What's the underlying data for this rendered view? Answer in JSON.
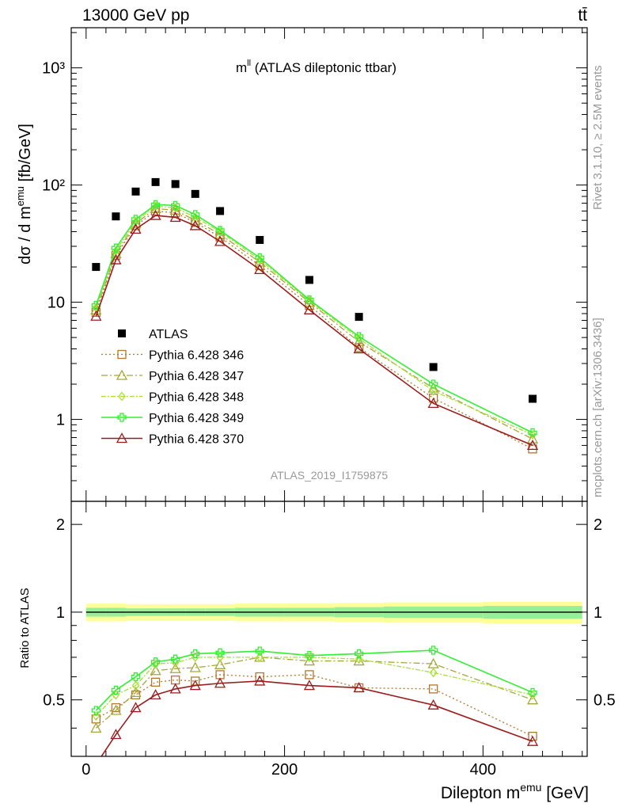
{
  "header": {
    "energy": "13000 GeV pp",
    "process": "tt̄"
  },
  "side": {
    "rivet": "Rivet 3.1.10, ≥ 2.5M events",
    "mcplots": "mcplots.cern.ch [arXiv:1306.3436]"
  },
  "main": {
    "title_base": "m",
    "title_sup": "ll",
    "title_rest": " (ATLAS dileptonic ttbar)",
    "ylabel_a": "dσ / d m",
    "ylabel_sup": "emu",
    "ylabel_b": " [fb/GeV]",
    "watermark": "ATLAS_2019_I1759875",
    "ytick_labels": [
      "10³",
      "10²",
      "10",
      "1"
    ]
  },
  "ratio": {
    "ylabel": "Ratio to ATLAS",
    "ytick_labels": [
      "2",
      "1",
      "0.5"
    ]
  },
  "xaxis": {
    "label_a": "Dilepton m",
    "label_sup": "emu",
    "label_b": " [GeV]",
    "tick_labels": [
      "0",
      "200",
      "400"
    ]
  },
  "chart_data": {
    "type": "line",
    "x_edges": [
      0,
      20,
      40,
      60,
      80,
      100,
      120,
      150,
      200,
      250,
      300,
      400,
      500
    ],
    "x": [
      10,
      30,
      50,
      70,
      90,
      110,
      135,
      175,
      225,
      275,
      350,
      450
    ],
    "main_ylim": [
      0.2,
      2200
    ],
    "main_yscale": "log",
    "ratio_ylim": [
      0.32,
      2.4
    ],
    "ratio_yscale": "log",
    "xlim": [
      -15,
      505
    ],
    "series": [
      {
        "name": "ATLAS",
        "color": "#000000",
        "marker": "square",
        "values": [
          20,
          54,
          88,
          106,
          102,
          84,
          60,
          34,
          15.5,
          7.5,
          2.8,
          1.5
        ]
      },
      {
        "name": "Pythia 6.428 346",
        "color": "#b07830",
        "marker": "open-square",
        "dash": "2,3",
        "values": [
          8.2,
          25,
          45,
          60,
          58,
          48,
          36,
          20.5,
          9.4,
          4.1,
          1.52,
          0.56
        ],
        "ratio": [
          0.43,
          0.47,
          0.52,
          0.575,
          0.585,
          0.58,
          0.61,
          0.6,
          0.61,
          0.55,
          0.545,
          0.375
        ]
      },
      {
        "name": "Pythia 6.428 347",
        "color": "#a6a63a",
        "marker": "open-triangle",
        "dash": "8,3,2,3",
        "values": [
          8.6,
          26,
          47,
          63,
          61,
          50,
          38,
          22,
          10,
          4.6,
          1.85,
          0.68
        ],
        "ratio": [
          0.4,
          0.46,
          0.53,
          0.63,
          0.64,
          0.645,
          0.66,
          0.7,
          0.68,
          0.68,
          0.665,
          0.5
        ]
      },
      {
        "name": "Pythia 6.428 348",
        "color": "#a8e030",
        "marker": "open-diamond",
        "dash": "6,2,2,2",
        "values": [
          9,
          27.5,
          49,
          66,
          64,
          53,
          40,
          23,
          10.3,
          4.9,
          1.75,
          0.74
        ],
        "ratio": [
          0.44,
          0.52,
          0.56,
          0.665,
          0.67,
          0.7,
          0.7,
          0.7,
          0.7,
          0.69,
          0.62,
          0.52
        ]
      },
      {
        "name": "Pythia 6.428 349",
        "color": "#33ee33",
        "marker": "cross",
        "dash": "",
        "values": [
          9.4,
          29,
          51,
          68,
          67,
          56,
          41,
          24,
          10.5,
          5.1,
          2,
          0.77
        ],
        "ratio": [
          0.46,
          0.54,
          0.6,
          0.675,
          0.69,
          0.72,
          0.725,
          0.735,
          0.71,
          0.72,
          0.74,
          0.53
        ]
      },
      {
        "name": "Pythia 6.428 370",
        "color": "#9b1c1c",
        "marker": "open-triangle",
        "dash": "",
        "values": [
          7.6,
          23,
          42,
          55,
          53,
          45,
          33,
          19,
          8.6,
          4,
          1.37,
          0.6
        ],
        "ratio": [
          0.3,
          0.38,
          0.47,
          0.52,
          0.545,
          0.56,
          0.57,
          0.58,
          0.56,
          0.55,
          0.48,
          0.36
        ]
      }
    ],
    "uncertainty_bands": {
      "outer_yellow": [
        0.07,
        0.07,
        0.065,
        0.065,
        0.065,
        0.065,
        0.065,
        0.07,
        0.07,
        0.075,
        0.08,
        0.085
      ],
      "inner_green": [
        0.035,
        0.035,
        0.03,
        0.03,
        0.03,
        0.03,
        0.03,
        0.035,
        0.035,
        0.04,
        0.045,
        0.05
      ]
    },
    "legend_position": "lower-left"
  }
}
